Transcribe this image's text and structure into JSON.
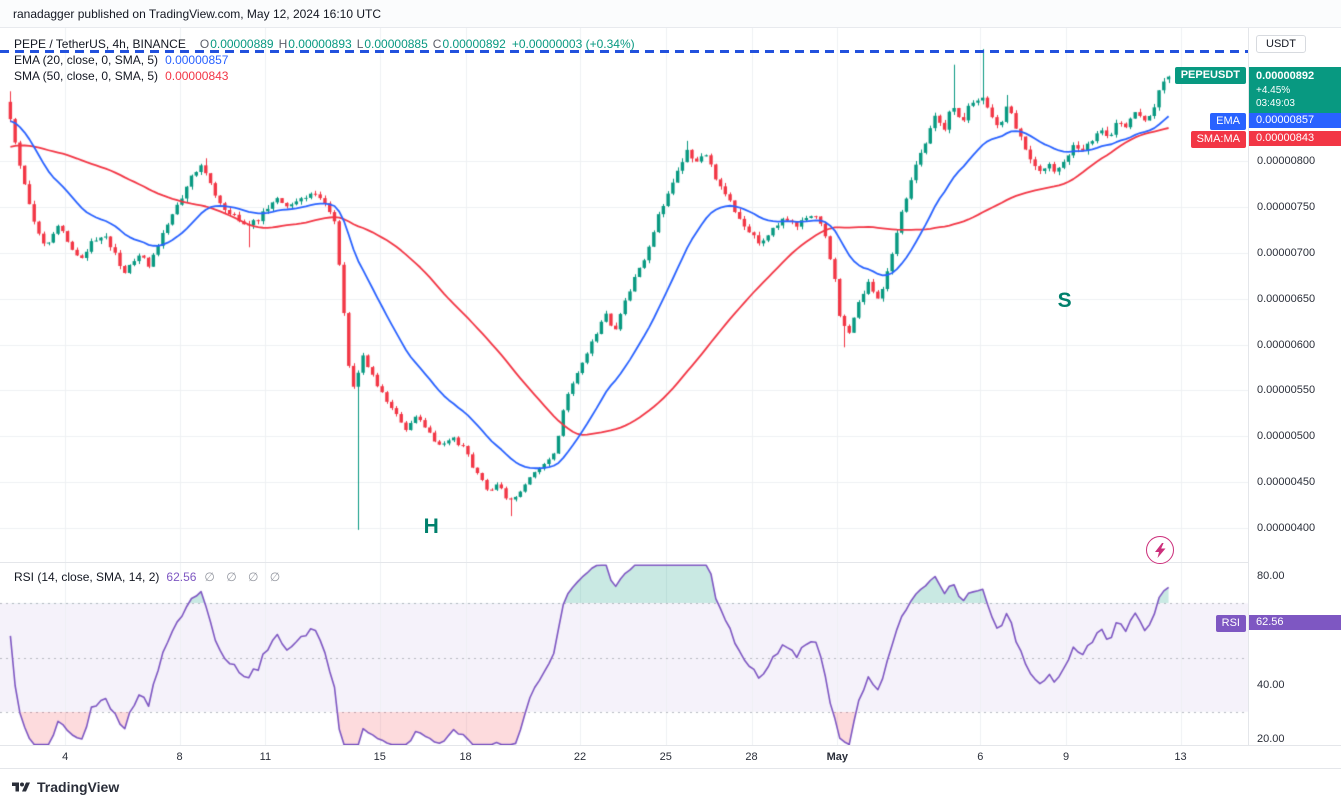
{
  "attribution": {
    "text": "ranadagger published on TradingView.com, May 12, 2024 16:10 UTC"
  },
  "main_legend": {
    "symbol_title": "PEPE / TetherUS, 4h, BINANCE",
    "o_label": "O",
    "open": "0.00000889",
    "h_label": "H",
    "high": "0.00000893",
    "l_label": "L",
    "low": "0.00000885",
    "c_label": "C",
    "close": "0.00000892",
    "change": "+0.00000003 (+0.34%)"
  },
  "ema_legend": {
    "title": "EMA (20, close, 0, SMA, 5)",
    "value": "0.00000857"
  },
  "sma_legend": {
    "title": "SMA (50, close, 0, SMA, 5)",
    "value": "0.00000843"
  },
  "rsi_legend": {
    "title": "RSI (14, close, SMA, 14, 2)",
    "value": "62.56",
    "hidden": "∅ ∅ ∅ ∅"
  },
  "price_axis": {
    "currency": "USDT"
  },
  "badges": {
    "symbol": {
      "name": "PEPEUSDT",
      "price": "0.00000892",
      "change_pct": "+4.45%",
      "countdown": "03:49:03"
    },
    "ema": {
      "label": "EMA",
      "value": "0.00000857"
    },
    "sma": {
      "label": "SMA:MA",
      "value": "0.00000843"
    },
    "rsi": {
      "label": "RSI",
      "value": "62.56"
    }
  },
  "footer": {
    "brand": "TradingView"
  },
  "chart_data": {
    "type": "candlestick",
    "title": "PEPE / TetherUS, 4h, BINANCE",
    "symbol": "PEPEUSDT",
    "exchange": "BINANCE",
    "interval": "4h",
    "current_ohlc": {
      "open": 8.89e-06,
      "high": 8.93e-06,
      "low": 8.85e-06,
      "close": 8.92e-06,
      "change": 3e-08,
      "change_pct": 0.34,
      "change_pct_24h": 4.45,
      "bar_countdown": "03:49:03"
    },
    "indicators": {
      "ema20": 8.57e-06,
      "sma50": 8.43e-06,
      "rsi14": 62.56
    },
    "colors": {
      "up": "#089981",
      "down": "#f23645",
      "ema": "#2962ff",
      "sma": "#f23645",
      "rsi": "#7e57c2",
      "resistance": "#2251dd",
      "annotation": "#00806c"
    },
    "price_scale_note": "prices stored as 1e-8 units (800 = 0.00000800 USDT)",
    "x_note": "x in April 2024 day numbers; May d = 30 + d; candle interval 4h = 1/6 day",
    "xlim_days": [
      2,
      45.36
    ],
    "ylim": [
      363,
      945
    ],
    "gen_start_day": -7,
    "end_day": 42.667,
    "price_ticks_1e8": [
      800,
      750,
      700,
      650,
      600,
      550,
      500,
      450,
      400
    ],
    "time_ticks": [
      {
        "label": "4",
        "day": 4
      },
      {
        "label": "8",
        "day": 8
      },
      {
        "label": "11",
        "day": 11
      },
      {
        "label": "15",
        "day": 15
      },
      {
        "label": "18",
        "day": 18
      },
      {
        "label": "22",
        "day": 22
      },
      {
        "label": "25",
        "day": 25
      },
      {
        "label": "28",
        "day": 28
      },
      {
        "label": "May",
        "day": 31,
        "bold": true
      },
      {
        "label": "6",
        "day": 36
      },
      {
        "label": "9",
        "day": 39
      },
      {
        "label": "13",
        "day": 43
      }
    ],
    "keyframes_day_price_1e8": [
      [
        -7,
        758
      ],
      [
        -4,
        792
      ],
      [
        -2,
        815
      ],
      [
        0,
        836
      ],
      [
        1,
        852
      ],
      [
        1.7,
        862
      ],
      [
        2,
        868
      ],
      [
        2.3,
        828
      ],
      [
        2.6,
        780
      ],
      [
        3,
        730
      ],
      [
        3.4,
        708
      ],
      [
        3.8,
        728
      ],
      [
        4.2,
        712
      ],
      [
        4.6,
        695
      ],
      [
        5,
        712
      ],
      [
        5.4,
        722
      ],
      [
        5.8,
        700
      ],
      [
        6.2,
        678
      ],
      [
        6.6,
        696
      ],
      [
        7,
        688
      ],
      [
        7.4,
        712
      ],
      [
        7.8,
        740
      ],
      [
        8.2,
        762
      ],
      [
        8.6,
        786
      ],
      [
        8.9,
        793
      ],
      [
        9.2,
        772
      ],
      [
        9.6,
        752
      ],
      [
        10,
        738
      ],
      [
        10.4,
        725
      ],
      [
        10.8,
        736
      ],
      [
        11.2,
        748
      ],
      [
        11.6,
        758
      ],
      [
        12,
        750
      ],
      [
        12.4,
        760
      ],
      [
        12.8,
        765
      ],
      [
        13.2,
        752
      ],
      [
        13.5,
        738
      ],
      [
        13.8,
        645
      ],
      [
        14,
        575
      ],
      [
        14.2,
        552
      ],
      [
        14.5,
        588
      ],
      [
        14.8,
        568
      ],
      [
        15.2,
        545
      ],
      [
        15.6,
        525
      ],
      [
        16,
        508
      ],
      [
        16.4,
        521
      ],
      [
        16.8,
        506
      ],
      [
        17.2,
        488
      ],
      [
        17.6,
        498
      ],
      [
        18,
        488
      ],
      [
        18.3,
        470
      ],
      [
        18.6,
        455
      ],
      [
        18.9,
        438
      ],
      [
        19.2,
        448
      ],
      [
        19.6,
        428
      ],
      [
        20,
        440
      ],
      [
        20.4,
        456
      ],
      [
        20.8,
        466
      ],
      [
        21.2,
        481
      ],
      [
        21.5,
        528
      ],
      [
        21.8,
        558
      ],
      [
        22.2,
        584
      ],
      [
        22.6,
        610
      ],
      [
        23,
        632
      ],
      [
        23.3,
        616
      ],
      [
        23.6,
        640
      ],
      [
        24,
        672
      ],
      [
        24.4,
        700
      ],
      [
        24.8,
        736
      ],
      [
        25.2,
        768
      ],
      [
        25.5,
        790
      ],
      [
        25.8,
        812
      ],
      [
        26.1,
        796
      ],
      [
        26.4,
        810
      ],
      [
        26.8,
        784
      ],
      [
        27.2,
        760
      ],
      [
        27.6,
        742
      ],
      [
        28,
        722
      ],
      [
        28.4,
        706
      ],
      [
        28.8,
        722
      ],
      [
        29.2,
        740
      ],
      [
        29.6,
        728
      ],
      [
        30,
        742
      ],
      [
        30.4,
        738
      ],
      [
        30.7,
        712
      ],
      [
        31,
        668
      ],
      [
        31.2,
        628
      ],
      [
        31.5,
        614
      ],
      [
        31.8,
        645
      ],
      [
        32.2,
        668
      ],
      [
        32.5,
        650
      ],
      [
        32.8,
        672
      ],
      [
        33,
        700
      ],
      [
        33.3,
        738
      ],
      [
        33.6,
        775
      ],
      [
        33.9,
        800
      ],
      [
        34.2,
        822
      ],
      [
        34.5,
        848
      ],
      [
        34.8,
        835
      ],
      [
        35.1,
        858
      ],
      [
        35.4,
        840
      ],
      [
        35.7,
        862
      ],
      [
        36.1,
        872
      ],
      [
        36.4,
        855
      ],
      [
        36.7,
        838
      ],
      [
        37,
        856
      ],
      [
        37.3,
        842
      ],
      [
        37.6,
        820
      ],
      [
        37.9,
        800
      ],
      [
        38.2,
        785
      ],
      [
        38.5,
        798
      ],
      [
        38.8,
        788
      ],
      [
        39.1,
        802
      ],
      [
        39.4,
        818
      ],
      [
        39.7,
        808
      ],
      [
        40,
        825
      ],
      [
        40.3,
        838
      ],
      [
        40.6,
        828
      ],
      [
        40.9,
        845
      ],
      [
        41.2,
        838
      ],
      [
        41.5,
        852
      ],
      [
        41.8,
        845
      ],
      [
        42.1,
        858
      ],
      [
        42.35,
        875
      ],
      [
        42.5,
        884
      ],
      [
        42.67,
        892
      ]
    ],
    "wick_events": [
      {
        "day": 2.1,
        "high": 876
      },
      {
        "day": 8.9,
        "high": 803
      },
      {
        "day": 10.4,
        "low": 706
      },
      {
        "day": 14.2,
        "low": 398
      },
      {
        "day": 19.6,
        "low": 413
      },
      {
        "day": 25.8,
        "high": 822
      },
      {
        "day": 31.3,
        "low": 597
      },
      {
        "day": 35.1,
        "high": 905
      },
      {
        "day": 36.1,
        "high": 922
      },
      {
        "day": 37,
        "high": 872
      }
    ],
    "last_candle_1e8": {
      "open": 889,
      "high": 893,
      "low": 885,
      "close": 892
    },
    "resistance_line_1e8": 920,
    "annotations": [
      {
        "text": "H",
        "day": 16.8,
        "price_1e8": 401
      },
      {
        "text": "S",
        "day": 38.95,
        "price_1e8": 648
      }
    ],
    "rsi_pane": {
      "ylim": [
        17.8,
        85.2
      ],
      "band": [
        30,
        70
      ],
      "dashed_levels": [
        70,
        50,
        30
      ],
      "ticks": [
        80,
        40,
        20
      ],
      "value": 62.56,
      "legend_position": "top-left"
    }
  }
}
